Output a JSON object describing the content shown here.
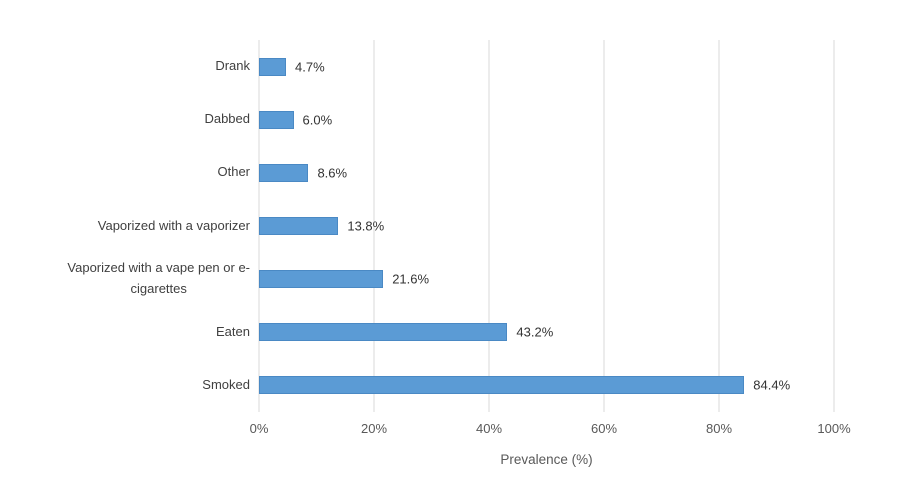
{
  "chart_data": {
    "type": "bar",
    "orientation": "horizontal",
    "title": "",
    "xlabel": "Prevalence (%)",
    "ylabel": "",
    "categories": [
      "Drank",
      "Dabbed",
      "Other",
      "Vaporized with a vaporizer",
      "Vaporized with a vape pen or e-cigarettes",
      "Eaten",
      "Smoked"
    ],
    "category_label_lines": [
      [
        "Drank"
      ],
      [
        "Dabbed"
      ],
      [
        "Other"
      ],
      [
        "Vaporized with a vaporizer"
      ],
      [
        "Vaporized with a vape pen or e-",
        "cigarettes"
      ],
      [
        "Eaten"
      ],
      [
        "Smoked"
      ]
    ],
    "values": [
      4.7,
      6.0,
      8.6,
      13.8,
      21.6,
      43.2,
      84.4
    ],
    "value_labels": [
      "4.7%",
      "6.0%",
      "8.6%",
      "13.8%",
      "21.6%",
      "43.2%",
      "84.4%"
    ],
    "xlim": [
      0,
      100
    ],
    "x_ticks": [
      "0%",
      "20%",
      "40%",
      "60%",
      "80%",
      "100%"
    ],
    "x_tick_values": [
      0,
      20,
      40,
      60,
      80,
      100
    ],
    "grid": "vertical",
    "legend": "none",
    "colors": {
      "bar_fill": "#5B9BD5",
      "bar_border": "#4A89C4",
      "gridline": "#D9D9D9",
      "category_label": "#404040",
      "value_label": "#333333",
      "tick_label": "#595959",
      "axis_title": "#595959"
    }
  }
}
